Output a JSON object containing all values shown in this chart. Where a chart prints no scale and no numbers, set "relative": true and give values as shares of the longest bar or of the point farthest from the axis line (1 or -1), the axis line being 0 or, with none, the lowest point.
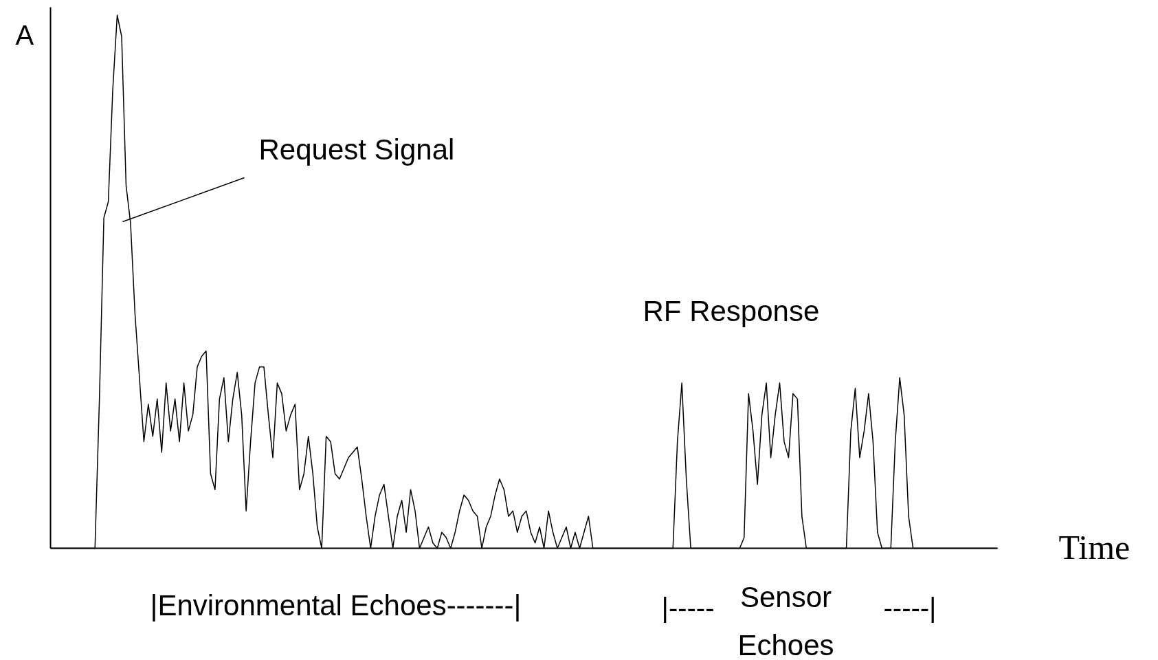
{
  "chart_data": {
    "type": "line",
    "relative": true,
    "xlabel": "Time",
    "ylabel": "A",
    "color": "#000000",
    "grid": false,
    "annotations": [
      "Request Signal",
      "RF Response",
      "|Environmental Echoes-------|",
      "|-----",
      "Sensor Echoes",
      "-----|"
    ],
    "categories": [
      null,
      null,
      null,
      null,
      null,
      null,
      null,
      null,
      null,
      null,
      null,
      null,
      null,
      null,
      null,
      null,
      null,
      null,
      null,
      null,
      null,
      null,
      null,
      null,
      null,
      null,
      null,
      null,
      null,
      null,
      null,
      null,
      null,
      null,
      null,
      null,
      null,
      null,
      null,
      null,
      null,
      null,
      null,
      null,
      null,
      null,
      null,
      null,
      null,
      null,
      null,
      null,
      null,
      null,
      null,
      null,
      null,
      null,
      null,
      null,
      null,
      null,
      null,
      null,
      null,
      null,
      null,
      null,
      null,
      null,
      null,
      null,
      null,
      null,
      null,
      null,
      null,
      null,
      null,
      null,
      null,
      null,
      null,
      null,
      null,
      null,
      null,
      null,
      null,
      null,
      null,
      null,
      null,
      null,
      null,
      null,
      null,
      null,
      null,
      null,
      null,
      null,
      null,
      null,
      null,
      null,
      null,
      null,
      null,
      null,
      null,
      null,
      null,
      null,
      null,
      null,
      null,
      null,
      null,
      null,
      null,
      null,
      null,
      null,
      null,
      null,
      null,
      null,
      null,
      null,
      null,
      null,
      null,
      null,
      null,
      null,
      null,
      null,
      null,
      null,
      null,
      null,
      null,
      null,
      null,
      null,
      null,
      null,
      null,
      null,
      null,
      null,
      null,
      null,
      null,
      null,
      null,
      null,
      null,
      null,
      null,
      null,
      null,
      null,
      null,
      null,
      null,
      null,
      null,
      null,
      null,
      null,
      null,
      null,
      null,
      null,
      null,
      null,
      null,
      null,
      null,
      null,
      null,
      null,
      null,
      null,
      null,
      null,
      null,
      null,
      null,
      null,
      null,
      null,
      null,
      null,
      null,
      null,
      null,
      null,
      null,
      null,
      null,
      null,
      null,
      null,
      null,
      null,
      null,
      null,
      null,
      null,
      null,
      null
    ],
    "values": [
      0,
      0,
      0,
      0,
      0,
      0,
      0,
      0,
      0,
      0,
      0,
      0.28,
      0.62,
      0.65,
      0.86,
      1,
      0.96,
      0.68,
      0.61,
      0.44,
      0.32,
      0.2,
      0.27,
      0.21,
      0.28,
      0.18,
      0.31,
      0.22,
      0.28,
      0.2,
      0.31,
      0.22,
      0.25,
      0.34,
      0.36,
      0.37,
      0.14,
      0.11,
      0.28,
      0.32,
      0.2,
      0.28,
      0.33,
      0.25,
      0.07,
      0.2,
      0.31,
      0.34,
      0.34,
      0.25,
      0.17,
      0.31,
      0.29,
      0.22,
      0.25,
      0.27,
      0.11,
      0.14,
      0.21,
      0.14,
      0.04,
      0,
      0.21,
      0.2,
      0.14,
      0.13,
      0.15,
      0.17,
      0.18,
      0.19,
      0.13,
      0.06,
      0,
      0.06,
      0.1,
      0.12,
      0.06,
      0,
      0.06,
      0.09,
      0.03,
      0.11,
      0.07,
      0,
      0.02,
      0.04,
      0.01,
      0,
      0.03,
      0.02,
      0,
      0.03,
      0.07,
      0.1,
      0.09,
      0.07,
      0.06,
      0,
      0.04,
      0.06,
      0.1,
      0.13,
      0.11,
      0.06,
      0.07,
      0.03,
      0.06,
      0.07,
      0.03,
      0.01,
      0.04,
      0,
      0.07,
      0.03,
      0,
      0.02,
      0.04,
      0,
      0.03,
      0,
      0.03,
      0.06,
      0,
      0,
      0,
      0,
      0,
      0,
      0,
      0,
      0,
      0,
      0,
      0,
      0,
      0,
      0,
      0,
      0,
      0,
      0,
      0.2,
      0.31,
      0.13,
      0,
      0,
      0,
      0,
      0,
      0,
      0,
      0,
      0,
      0,
      0,
      0,
      0.02,
      0.29,
      0.22,
      0.12,
      0.25,
      0.31,
      0.17,
      0.25,
      0.31,
      0.2,
      0.17,
      0.29,
      0.28,
      0.06,
      0,
      0,
      0,
      0,
      0,
      0,
      0,
      0,
      0,
      0,
      0.22,
      0.3,
      0.17,
      0.22,
      0.29,
      0.2,
      0.03,
      0,
      0,
      0,
      0.2,
      0.32,
      0.25,
      0.06,
      0,
      0,
      0,
      0,
      0,
      0,
      0,
      0,
      0,
      0,
      0,
      0,
      0,
      0,
      0,
      0,
      0,
      0,
      0,
      0
    ]
  }
}
